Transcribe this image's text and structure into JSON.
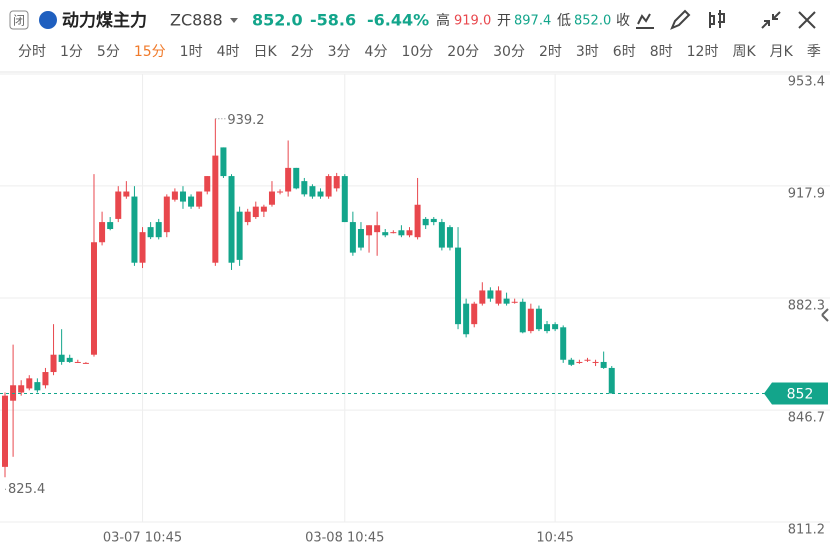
{
  "header": {
    "status": "闭",
    "name": "动力煤主力",
    "code": "ZC888",
    "price": "852.0",
    "change": "-58.6",
    "change_pct": "-6.44%",
    "high_label": "高",
    "high": "919.0",
    "open_label": "开",
    "open": "897.4",
    "low_label": "低",
    "low": "852.0",
    "close_label": "收"
  },
  "tabs": [
    "分时",
    "1分",
    "5分",
    "15分",
    "1时",
    "4时",
    "日K",
    "2分",
    "3分",
    "4分",
    "10分",
    "20分",
    "30分",
    "2时",
    "3时",
    "6时",
    "8时",
    "12时",
    "周K",
    "月K",
    "季"
  ],
  "active_tab": 3,
  "chart_data": {
    "type": "candlestick",
    "categories": [
      null,
      null,
      null,
      null,
      null,
      null,
      null,
      null,
      null,
      null,
      null,
      null,
      null,
      null,
      null,
      null,
      null,
      "03-07 10:45",
      null,
      null,
      null,
      null,
      null,
      null,
      null,
      null,
      null,
      null,
      null,
      null,
      null,
      null,
      null,
      null,
      null,
      null,
      null,
      null,
      null,
      null,
      null,
      null,
      "03-08 10:45",
      null,
      null,
      null,
      null,
      null,
      null,
      null,
      null,
      null,
      null,
      null,
      null,
      null,
      null,
      null,
      null,
      null,
      null,
      null,
      null,
      null,
      null,
      null,
      null,
      null,
      "10:45",
      null,
      null,
      null,
      null,
      null,
      null,
      null
    ],
    "open": [
      828.7,
      849.7,
      852.3,
      853.6,
      855.6,
      854.6,
      858.8,
      864.3,
      863.3,
      862.0,
      861.7,
      864.3,
      900.0,
      906.4,
      907.4,
      914.5,
      914.5,
      893.5,
      904.8,
      906.4,
      903.2,
      913.5,
      916.1,
      914.5,
      911.3,
      916.1,
      893.5,
      930.1,
      921.0,
      909.7,
      906.4,
      908.0,
      909.7,
      911.9,
      916.1,
      916.1,
      923.6,
      919.4,
      917.8,
      916.1,
      914.5,
      917.1,
      921.0,
      906.4,
      904.2,
      902.2,
      903.2,
      903.2,
      903.2,
      903.8,
      902.2,
      901.6,
      907.4,
      907.4,
      906.4,
      904.8,
      898.3,
      880.5,
      874.0,
      880.5,
      884.7,
      880.5,
      882.1,
      881.1,
      881.1,
      871.8,
      878.9,
      874.0,
      874.0,
      873.0,
      862.7,
      862.0,
      862.7,
      862.0,
      862.0,
      860.1
    ],
    "high": [
      852.3,
      867.5,
      856.2,
      857.8,
      856.8,
      860.1,
      874.0,
      872.4,
      864.3,
      862.7,
      862.0,
      921.6,
      909.7,
      908.0,
      917.8,
      919.4,
      917.8,
      904.8,
      906.4,
      907.4,
      915.2,
      917.1,
      917.8,
      915.2,
      916.1,
      921.0,
      939.2,
      930.1,
      921.6,
      911.3,
      910.6,
      912.9,
      911.9,
      919.4,
      916.8,
      932.3,
      923.6,
      920.4,
      918.4,
      917.1,
      921.6,
      922.0,
      921.6,
      909.7,
      906.4,
      905.4,
      909.7,
      904.2,
      903.8,
      905.4,
      904.8,
      920.4,
      908.0,
      908.0,
      907.4,
      905.4,
      904.8,
      882.1,
      881.1,
      887.3,
      885.7,
      886.0,
      884.0,
      882.1,
      882.1,
      880.5,
      879.9,
      875.0,
      874.6,
      873.6,
      863.3,
      862.7,
      863.3,
      862.7,
      865.3,
      860.7
    ],
    "low": [
      825.4,
      831.9,
      851.3,
      853.0,
      852.3,
      853.6,
      857.8,
      861.1,
      861.7,
      861.7,
      861.7,
      863.7,
      899.0,
      903.8,
      906.4,
      913.8,
      892.5,
      891.8,
      901.0,
      900.9,
      901.6,
      912.9,
      910.6,
      910.6,
      910.6,
      915.2,
      892.5,
      920.4,
      891.2,
      892.5,
      905.4,
      907.4,
      908.0,
      911.3,
      915.2,
      914.5,
      916.8,
      914.5,
      913.8,
      913.8,
      913.8,
      916.1,
      906.4,
      895.7,
      897.4,
      896.7,
      895.7,
      901.6,
      902.8,
      901.6,
      901.6,
      900.9,
      904.2,
      905.4,
      897.4,
      897.4,
      872.4,
      869.8,
      873.0,
      879.9,
      881.1,
      879.9,
      879.9,
      880.5,
      871.1,
      871.1,
      871.8,
      871.1,
      871.8,
      861.7,
      860.7,
      861.4,
      862.0,
      860.7,
      859.8,
      852.0
    ],
    "close": [
      851.3,
      854.6,
      854.6,
      856.8,
      853.0,
      858.8,
      864.3,
      862.0,
      862.0,
      862.0,
      861.7,
      900.0,
      906.4,
      904.2,
      916.1,
      916.1,
      893.5,
      903.2,
      901.6,
      901.6,
      914.5,
      916.1,
      912.9,
      911.3,
      916.1,
      921.0,
      927.5,
      921.0,
      893.5,
      894.4,
      909.7,
      911.3,
      911.3,
      916.1,
      916.1,
      923.6,
      917.1,
      915.2,
      914.5,
      914.5,
      921.0,
      921.0,
      906.4,
      896.7,
      898.3,
      905.4,
      905.4,
      902.2,
      903.2,
      902.2,
      903.8,
      911.9,
      905.4,
      906.4,
      898.3,
      898.3,
      874.0,
      870.8,
      880.5,
      884.7,
      882.1,
      884.7,
      880.5,
      881.1,
      871.4,
      878.9,
      872.4,
      871.8,
      872.4,
      862.7,
      861.1,
      862.0,
      862.7,
      862.0,
      860.1,
      852.0
    ],
    "ylim": [
      811.2,
      953.4
    ],
    "yticks": [
      811.2,
      846.7,
      882.3,
      917.9,
      953.4
    ],
    "grid": true,
    "up_color": "#e8474d",
    "down_color": "#13a58b",
    "last_price_line": true
  }
}
